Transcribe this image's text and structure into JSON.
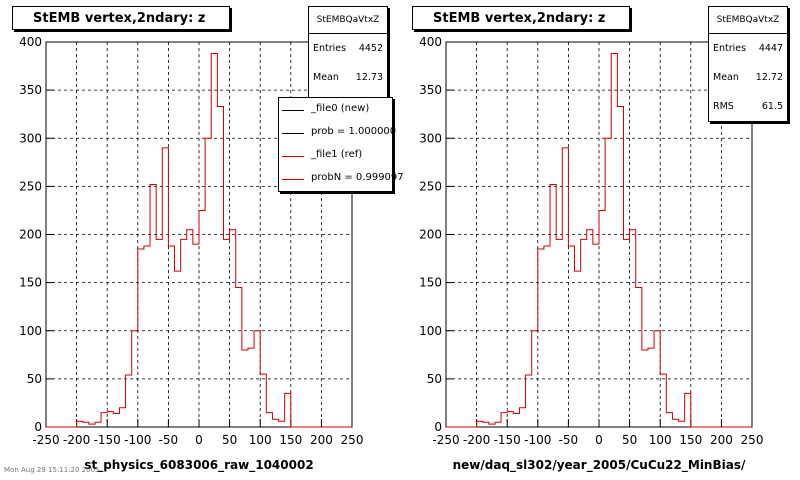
{
  "chart_data": [
    {
      "type": "histogram",
      "title": "StEMB  vertex,2ndary: z",
      "xlabel": "st_physics_6083006_raw_1040002",
      "xlim": [
        -250,
        250
      ],
      "ylim": [
        0,
        400
      ],
      "xticks": [
        -250,
        -200,
        -150,
        -100,
        -50,
        0,
        50,
        100,
        150,
        200,
        250
      ],
      "yticks": [
        0,
        50,
        100,
        150,
        200,
        250,
        300,
        350,
        400
      ],
      "grid": true,
      "bin_width": 10,
      "x_start": -250,
      "series": [
        {
          "color": "#cc0000",
          "values": [
            0,
            0,
            0,
            0,
            0,
            6,
            5,
            3,
            5,
            15,
            16,
            14,
            20,
            54,
            100,
            185,
            188,
            252,
            195,
            290,
            188,
            162,
            195,
            205,
            190,
            225,
            300,
            388,
            333,
            195,
            205,
            145,
            80,
            82,
            100,
            55,
            15,
            8,
            6,
            35,
            0,
            0,
            0,
            0,
            0,
            0,
            0,
            0,
            0,
            0
          ]
        }
      ],
      "stats": {
        "name": "StEMBQaVtxZ",
        "rows": [
          {
            "label": "Entries",
            "value": "4452"
          },
          {
            "label": "Mean",
            "value": "12.73"
          }
        ]
      },
      "legend": [
        {
          "label": "_file0 (new)",
          "color": "#000000"
        },
        {
          "label": "prob = 1.000000",
          "color": "#000000"
        },
        {
          "label": "_file1 (ref)",
          "color": "#cc0000"
        },
        {
          "label": "probN = 0.999097",
          "color": "#cc0000"
        }
      ]
    },
    {
      "type": "histogram",
      "title": "StEMB  vertex,2ndary: z",
      "xlabel": "new/daq_sl302/year_2005/CuCu22_MinBias/",
      "xlim": [
        -250,
        250
      ],
      "ylim": [
        0,
        400
      ],
      "xticks": [
        -250,
        -200,
        -150,
        -100,
        -50,
        0,
        50,
        100,
        150,
        200,
        250
      ],
      "yticks": [
        0,
        50,
        100,
        150,
        200,
        250,
        300,
        350,
        400
      ],
      "grid": true,
      "bin_width": 10,
      "x_start": -250,
      "series": [
        {
          "color": "#cc0000",
          "values": [
            0,
            0,
            0,
            0,
            0,
            6,
            5,
            3,
            5,
            15,
            16,
            14,
            20,
            54,
            100,
            185,
            188,
            252,
            195,
            290,
            188,
            162,
            195,
            205,
            190,
            225,
            300,
            388,
            333,
            195,
            205,
            145,
            80,
            82,
            100,
            55,
            15,
            8,
            6,
            35,
            0,
            0,
            0,
            0,
            0,
            0,
            0,
            0,
            0,
            0
          ]
        }
      ],
      "stats": {
        "name": "StEMBQaVtxZ",
        "rows": [
          {
            "label": "Entries",
            "value": "4447"
          },
          {
            "label": "Mean",
            "value": "12.72"
          },
          {
            "label": "RMS",
            "value": "61.5"
          }
        ]
      }
    }
  ],
  "footer": "Mon Aug 29 15:11:20 2005"
}
